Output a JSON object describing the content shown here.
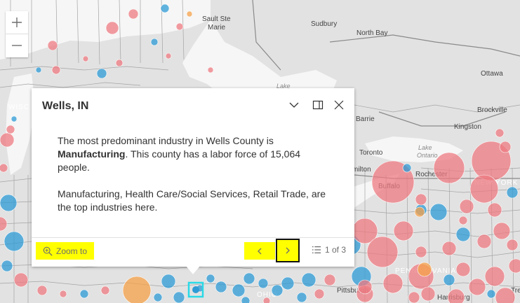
{
  "map": {
    "places": [
      {
        "name": "Sault Ste",
        "cls": ""
      },
      {
        "name": "Marie",
        "cls": ""
      },
      {
        "name": "Sudbury",
        "cls": ""
      },
      {
        "name": "North Bay",
        "cls": ""
      },
      {
        "name": "Ottawa",
        "cls": ""
      },
      {
        "name": "Brockville",
        "cls": ""
      },
      {
        "name": "Kingston",
        "cls": ""
      },
      {
        "name": "Barrie",
        "cls": ""
      },
      {
        "name": "Toronto",
        "cls": ""
      },
      {
        "name": "milton",
        "cls": ""
      },
      {
        "name": "Lake",
        "cls": "water"
      },
      {
        "name": "Ontario",
        "cls": "water"
      },
      {
        "name": "Rochester",
        "cls": ""
      },
      {
        "name": "Buffalo",
        "cls": ""
      },
      {
        "name": "NEW YORK",
        "cls": "state"
      },
      {
        "name": "PENNSYLVANIA",
        "cls": "state"
      },
      {
        "name": "Pittsburgh",
        "cls": ""
      },
      {
        "name": "Harrisburg",
        "cls": ""
      },
      {
        "name": "Lake",
        "cls": "water"
      },
      {
        "name": "WISC",
        "cls": "state"
      },
      {
        "name": "OHIO",
        "cls": "state"
      },
      {
        "name": "Tre",
        "cls": ""
      }
    ],
    "colors": {
      "land": "#e2e2e2",
      "water": "#f6f6f6",
      "border": "#9a9a9a",
      "red": "#ee7b82",
      "blue": "#2e9bd6",
      "orange": "#f5a14a",
      "highlight": "#2ad9e6"
    }
  },
  "zoom": {
    "in_icon": "plus-icon",
    "out_icon": "minus-icon"
  },
  "popup": {
    "title": "Wells, IN",
    "collapse_icon": "chevron-down-icon",
    "dock_icon": "dock-icon",
    "close_icon": "close-icon",
    "body": {
      "p1_prefix": "The most predominant industry in Wells County is ",
      "p1_industry": "Manufacturing",
      "p1_suffix": ". This county has a labor force of 15,064 people.",
      "p2": "Manufacturing, Health Care/Social Services, Retail Trade, are the top industries here."
    },
    "footer": {
      "zoom_to_label": "Zoom to",
      "zoom_to_icon": "zoom-in-magnifier-icon",
      "prev_icon": "chevron-left-icon",
      "next_icon": "chevron-right-icon",
      "pager_icon": "list-icon",
      "pager_text": "1 of 3"
    }
  }
}
